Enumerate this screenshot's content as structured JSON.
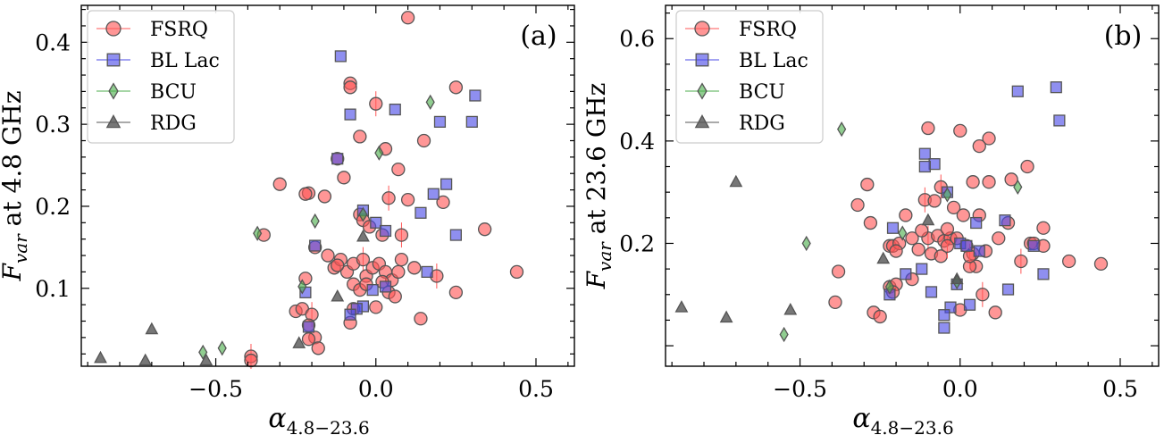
{
  "legend": [
    "FSRQ",
    "BL Lac",
    "BCU",
    "RDG"
  ],
  "colors": {
    "FSRQ": "#ff5555",
    "BL Lac": "#4a4ae6",
    "BCU": "#4cae4c",
    "RDG": "#555555",
    "edge": "#555555"
  },
  "chart_data": [
    {
      "type": "scatter",
      "panel_label": "(a)",
      "xlabel_symbol": "α",
      "xlabel_sub": "4.8−23.6",
      "ylabel_main": "F",
      "ylabel_sub": "var",
      "ylabel_rest": " at 4.8 GHz",
      "xlim": [
        -0.92,
        0.62
      ],
      "ylim": [
        0.005,
        0.445
      ],
      "xticks": [
        -0.5,
        0.0,
        0.5
      ],
      "xtick_labels": [
        "−0.5",
        "0.0",
        "0.5"
      ],
      "yticks": [
        0.1,
        0.2,
        0.3,
        0.4
      ],
      "ytick_labels": [
        "0.1",
        "0.2",
        "0.3",
        "0.4"
      ],
      "series": [
        {
          "name": "FSRQ",
          "points": [
            [
              0.1,
              0.43
            ],
            [
              -0.08,
              0.35
            ],
            [
              -0.08,
              0.345
            ],
            [
              0.25,
              0.345
            ],
            [
              0.0,
              0.325
            ],
            [
              -0.05,
              0.285
            ],
            [
              0.03,
              0.27
            ],
            [
              0.15,
              0.28
            ],
            [
              -0.12,
              0.258
            ],
            [
              0.07,
              0.245
            ],
            [
              -0.3,
              0.227
            ],
            [
              -0.21,
              0.216
            ],
            [
              -0.16,
              0.212
            ],
            [
              0.04,
              0.21
            ],
            [
              0.1,
              0.208
            ],
            [
              0.21,
              0.205
            ],
            [
              -0.1,
              0.235
            ],
            [
              -0.22,
              0.215
            ],
            [
              -0.05,
              0.19
            ],
            [
              -0.04,
              0.183
            ],
            [
              -0.02,
              0.175
            ],
            [
              0.02,
              0.165
            ],
            [
              0.08,
              0.165
            ],
            [
              0.34,
              0.172
            ],
            [
              -0.35,
              0.165
            ],
            [
              -0.19,
              0.15
            ],
            [
              -0.15,
              0.14
            ],
            [
              -0.13,
              0.125
            ],
            [
              -0.11,
              0.135
            ],
            [
              -0.09,
              0.12
            ],
            [
              -0.07,
              0.13
            ],
            [
              -0.04,
              0.135
            ],
            [
              -0.03,
              0.115
            ],
            [
              -0.01,
              0.125
            ],
            [
              0.01,
              0.13
            ],
            [
              0.03,
              0.12
            ],
            [
              0.05,
              0.11
            ],
            [
              0.07,
              0.12
            ],
            [
              0.08,
              0.135
            ],
            [
              0.12,
              0.125
            ],
            [
              0.19,
              0.115
            ],
            [
              -0.07,
              0.105
            ],
            [
              -0.05,
              0.098
            ],
            [
              0.02,
              0.108
            ],
            [
              0.04,
              0.095
            ],
            [
              0.06,
              0.09
            ],
            [
              -0.22,
              0.112
            ],
            [
              -0.25,
              0.072
            ],
            [
              -0.23,
              0.075
            ],
            [
              -0.2,
              0.068
            ],
            [
              -0.07,
              0.075
            ],
            [
              0.25,
              0.095
            ],
            [
              0.44,
              0.12
            ],
            [
              0.14,
              0.063
            ],
            [
              -0.21,
              0.055
            ],
            [
              -0.19,
              0.04
            ],
            [
              -0.21,
              0.038
            ],
            [
              -0.18,
              0.027
            ],
            [
              -0.39,
              0.017
            ],
            [
              -0.39,
              0.012
            ],
            [
              -0.08,
              0.058
            ],
            [
              -0.03,
              0.105
            ],
            [
              0.0,
              0.077
            ],
            [
              -0.12,
              0.128
            ]
          ]
        },
        {
          "name": "BL Lac",
          "points": [
            [
              -0.11,
              0.383
            ],
            [
              0.31,
              0.335
            ],
            [
              0.3,
              0.303
            ],
            [
              0.2,
              0.303
            ],
            [
              0.06,
              0.318
            ],
            [
              -0.08,
              0.312
            ],
            [
              -0.12,
              0.258
            ],
            [
              0.22,
              0.227
            ],
            [
              0.18,
              0.215
            ],
            [
              0.14,
              0.192
            ],
            [
              0.25,
              0.165
            ],
            [
              -0.04,
              0.195
            ],
            [
              0.0,
              0.18
            ],
            [
              0.03,
              0.17
            ],
            [
              -0.19,
              0.152
            ],
            [
              0.16,
              0.12
            ],
            [
              -0.22,
              0.095
            ],
            [
              -0.01,
              0.098
            ],
            [
              0.03,
              0.102
            ],
            [
              -0.04,
              0.078
            ],
            [
              -0.06,
              0.075
            ],
            [
              -0.08,
              0.068
            ],
            [
              -0.21,
              0.053
            ]
          ]
        },
        {
          "name": "BCU",
          "points": [
            [
              0.17,
              0.327
            ],
            [
              0.01,
              0.265
            ],
            [
              -0.04,
              0.19
            ],
            [
              -0.19,
              0.182
            ],
            [
              -0.37,
              0.167
            ],
            [
              -0.23,
              0.102
            ],
            [
              -0.48,
              0.027
            ],
            [
              -0.54,
              0.022
            ]
          ]
        },
        {
          "name": "RDG",
          "points": [
            [
              -0.04,
              0.163
            ],
            [
              -0.12,
              0.09
            ],
            [
              -0.24,
              0.033
            ],
            [
              -0.7,
              0.05
            ],
            [
              -0.86,
              0.015
            ],
            [
              -0.72,
              0.012
            ],
            [
              -0.53,
              0.012
            ]
          ]
        }
      ]
    },
    {
      "type": "scatter",
      "panel_label": "(b)",
      "xlabel_symbol": "α",
      "xlabel_sub": "4.8−23.6",
      "ylabel_main": "F",
      "ylabel_sub": "var",
      "ylabel_rest": " at 23.6 GHz",
      "xlim": [
        -0.92,
        0.62
      ],
      "ylim": [
        -0.04,
        0.665
      ],
      "xticks": [
        -0.5,
        0.0,
        0.5
      ],
      "xtick_labels": [
        "−0.5",
        "0.0",
        "0.5"
      ],
      "yticks": [
        0.2,
        0.4,
        0.6
      ],
      "ytick_labels": [
        "0.2",
        "0.4",
        "0.6"
      ],
      "series": [
        {
          "name": "FSRQ",
          "points": [
            [
              -0.1,
              0.425
            ],
            [
              0.0,
              0.42
            ],
            [
              0.09,
              0.405
            ],
            [
              0.06,
              0.39
            ],
            [
              -0.06,
              0.31
            ],
            [
              0.04,
              0.32
            ],
            [
              0.09,
              0.32
            ],
            [
              0.16,
              0.325
            ],
            [
              0.21,
              0.35
            ],
            [
              -0.29,
              0.315
            ],
            [
              -0.32,
              0.275
            ],
            [
              -0.28,
              0.24
            ],
            [
              -0.17,
              0.255
            ],
            [
              -0.11,
              0.285
            ],
            [
              -0.08,
              0.283
            ],
            [
              -0.02,
              0.27
            ],
            [
              0.01,
              0.255
            ],
            [
              0.06,
              0.255
            ],
            [
              -0.22,
              0.195
            ],
            [
              -0.21,
              0.195
            ],
            [
              -0.19,
              0.2
            ],
            [
              -0.15,
              0.21
            ],
            [
              -0.1,
              0.21
            ],
            [
              -0.07,
              0.215
            ],
            [
              -0.05,
              0.205
            ],
            [
              -0.03,
              0.21
            ],
            [
              0.02,
              0.195
            ],
            [
              -0.2,
              0.185
            ],
            [
              -0.13,
              0.188
            ],
            [
              -0.09,
              0.18
            ],
            [
              -0.06,
              0.175
            ],
            [
              -0.04,
              0.195
            ],
            [
              0.04,
              0.18
            ],
            [
              0.08,
              0.185
            ],
            [
              0.12,
              0.21
            ],
            [
              0.22,
              0.2
            ],
            [
              0.23,
              0.2
            ],
            [
              0.26,
              0.23
            ],
            [
              0.15,
              0.24
            ],
            [
              0.26,
              0.195
            ],
            [
              0.19,
              0.165
            ],
            [
              0.34,
              0.165
            ],
            [
              0.44,
              0.16
            ],
            [
              -0.38,
              0.145
            ],
            [
              -0.22,
              0.115
            ],
            [
              -0.2,
              0.12
            ],
            [
              -0.21,
              0.105
            ],
            [
              -0.15,
              0.13
            ],
            [
              0.05,
              0.155
            ],
            [
              0.07,
              0.1
            ],
            [
              -0.39,
              0.085
            ],
            [
              -0.27,
              0.065
            ],
            [
              -0.25,
              0.057
            ],
            [
              0.0,
              0.07
            ],
            [
              0.03,
              0.155
            ],
            [
              -0.01,
              0.21
            ],
            [
              0.11,
              0.065
            ],
            [
              -0.12,
              0.225
            ],
            [
              0.03,
              0.175
            ],
            [
              -0.04,
              0.228
            ]
          ]
        },
        {
          "name": "BL Lac",
          "points": [
            [
              0.3,
              0.505
            ],
            [
              0.31,
              0.44
            ],
            [
              0.18,
              0.497
            ],
            [
              -0.11,
              0.375
            ],
            [
              -0.08,
              0.355
            ],
            [
              -0.11,
              0.35
            ],
            [
              -0.04,
              0.3
            ],
            [
              0.05,
              0.24
            ],
            [
              0.14,
              0.245
            ],
            [
              0.23,
              0.195
            ],
            [
              0.26,
              0.14
            ],
            [
              -0.21,
              0.23
            ],
            [
              -0.17,
              0.14
            ],
            [
              -0.12,
              0.15
            ],
            [
              -0.22,
              0.1
            ],
            [
              0.0,
              0.2
            ],
            [
              0.02,
              0.195
            ],
            [
              0.06,
              0.185
            ],
            [
              -0.09,
              0.105
            ],
            [
              -0.01,
              0.12
            ],
            [
              0.03,
              0.08
            ],
            [
              0.15,
              0.11
            ],
            [
              -0.03,
              0.075
            ],
            [
              -0.05,
              0.06
            ],
            [
              -0.05,
              0.035
            ]
          ]
        },
        {
          "name": "BCU",
          "points": [
            [
              -0.37,
              0.423
            ],
            [
              0.18,
              0.31
            ],
            [
              -0.04,
              0.295
            ],
            [
              -0.18,
              0.22
            ],
            [
              -0.48,
              0.2
            ],
            [
              -0.22,
              0.115
            ],
            [
              -0.01,
              0.125
            ],
            [
              -0.55,
              0.022
            ]
          ]
        },
        {
          "name": "RDG",
          "points": [
            [
              -0.7,
              0.32
            ],
            [
              -0.1,
              0.245
            ],
            [
              -0.24,
              0.17
            ],
            [
              -0.01,
              0.13
            ],
            [
              -0.87,
              0.075
            ],
            [
              -0.73,
              0.055
            ],
            [
              -0.53,
              0.07
            ]
          ]
        }
      ]
    }
  ]
}
